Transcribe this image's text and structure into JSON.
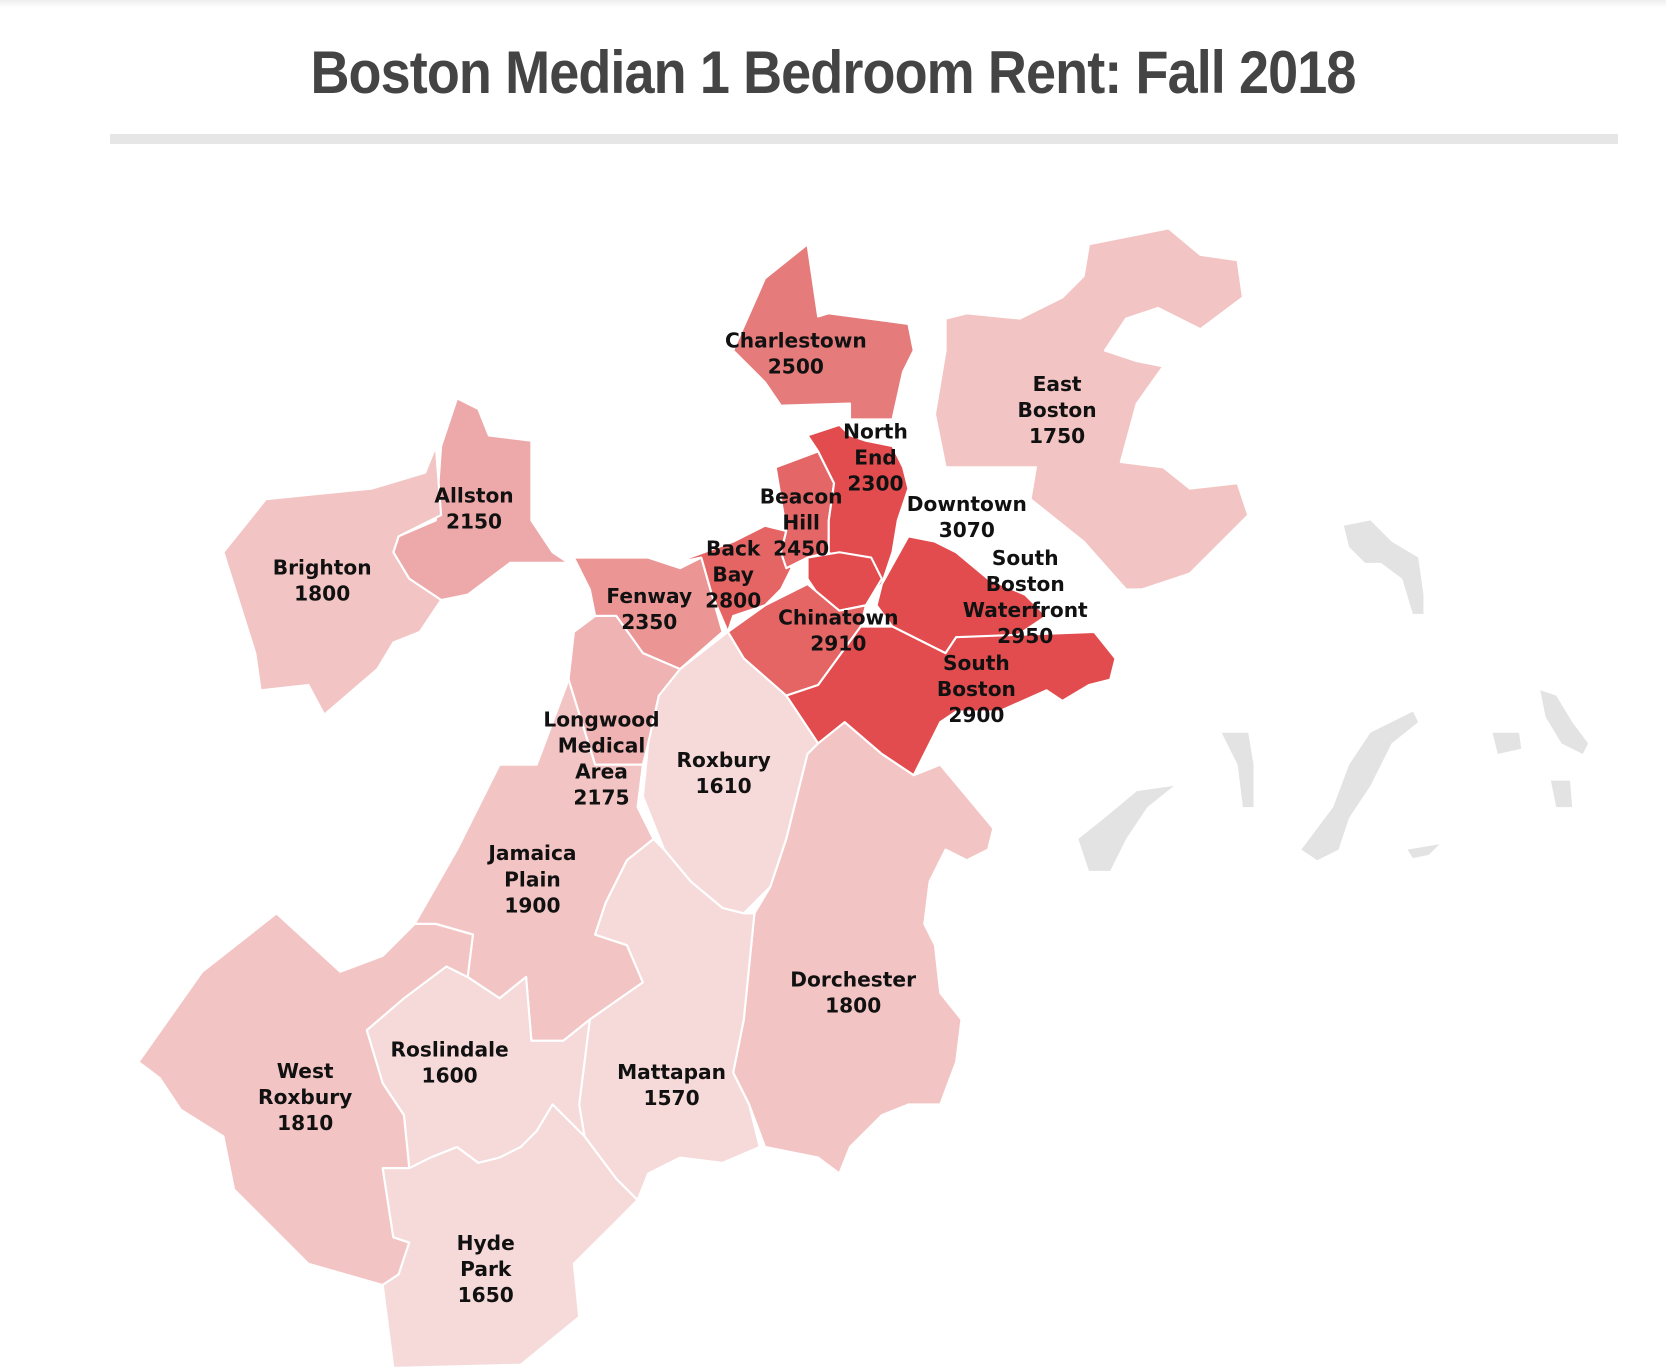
{
  "title": "Boston Median 1 Bedroom Rent: Fall 2018",
  "colors": {
    "title": "#444444",
    "rule": "#e6e6e6",
    "islands": "#e3e3e3",
    "highest": "#e24c4e",
    "lowest": "#f6d9d9"
  },
  "neighborhoods": [
    {
      "id": "charlestown",
      "name": [
        "Charlestown"
      ],
      "rent": "2500",
      "color": "#e57b7b"
    },
    {
      "id": "east-boston",
      "name": [
        "East",
        "Boston"
      ],
      "rent": "1750",
      "color": "#f3c4c4"
    },
    {
      "id": "north-end",
      "name": [
        "North",
        "End"
      ],
      "rent": "2300",
      "color": "#e24c4e"
    },
    {
      "id": "allston",
      "name": [
        "Allston"
      ],
      "rent": "2150",
      "color": "#eda9a9"
    },
    {
      "id": "brighton",
      "name": [
        "Brighton"
      ],
      "rent": "1800",
      "color": "#f3c4c4"
    },
    {
      "id": "beacon-hill",
      "name": [
        "Beacon",
        "Hill"
      ],
      "rent": "2450",
      "color": "#e56666"
    },
    {
      "id": "downtown",
      "name": [
        "Downtown"
      ],
      "rent": "3070",
      "color": "#e24c4e"
    },
    {
      "id": "back-bay",
      "name": [
        "Back",
        "Bay"
      ],
      "rent": "2800",
      "color": "#e56464"
    },
    {
      "id": "fenway",
      "name": [
        "Fenway"
      ],
      "rent": "2350",
      "color": "#ec9595"
    },
    {
      "id": "south-boston-waterfront",
      "name": [
        "South",
        "Boston",
        "Waterfront"
      ],
      "rent": "2950",
      "color": "#e24c4e"
    },
    {
      "id": "chinatown",
      "name": [
        "Chinatown"
      ],
      "rent": "2910",
      "color": "#e56464"
    },
    {
      "id": "south-boston",
      "name": [
        "South",
        "Boston"
      ],
      "rent": "2900",
      "color": "#e24c4e"
    },
    {
      "id": "longwood",
      "name": [
        "Longwood",
        "Medical",
        "Area"
      ],
      "rent": "2175",
      "color": "#f0b3b3"
    },
    {
      "id": "roxbury",
      "name": [
        "Roxbury"
      ],
      "rent": "1610",
      "color": "#f6d9d9"
    },
    {
      "id": "jamaica-plain",
      "name": [
        "Jamaica",
        "Plain"
      ],
      "rent": "1900",
      "color": "#f3c4c4"
    },
    {
      "id": "dorchester",
      "name": [
        "Dorchester"
      ],
      "rent": "1800",
      "color": "#f3c4c4"
    },
    {
      "id": "west-roxbury",
      "name": [
        "West",
        "Roxbury"
      ],
      "rent": "1810",
      "color": "#f3c4c4"
    },
    {
      "id": "roslindale",
      "name": [
        "Roslindale"
      ],
      "rent": "1600",
      "color": "#f6d9d9"
    },
    {
      "id": "mattapan",
      "name": [
        "Mattapan"
      ],
      "rent": "1570",
      "color": "#f6d9d9"
    },
    {
      "id": "hyde-park",
      "name": [
        "Hyde",
        "Park"
      ],
      "rent": "1650",
      "color": "#f6d9d9"
    }
  ]
}
